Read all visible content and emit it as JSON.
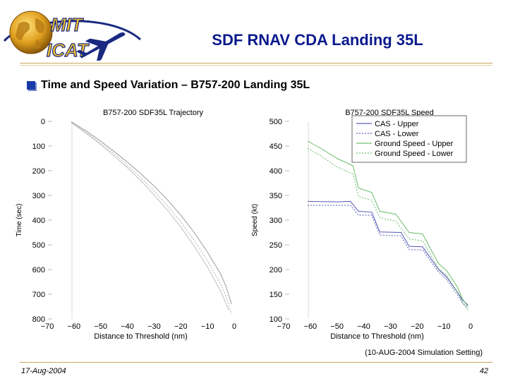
{
  "logo": {
    "line1": "MIT",
    "line2": "ICAT"
  },
  "header": {
    "title": "SDF RNAV CDA Landing 35L"
  },
  "bullet": {
    "text": "Time and Speed Variation – B757-200 Landing 35L"
  },
  "caption": "(10-AUG-2004 Simulation Setting)",
  "footer": {
    "date": "17-Aug-2004",
    "page": "42"
  },
  "colors": {
    "title": "#0a1a8c",
    "accent_gold": "#c8a858",
    "cas": "#3a3ab0",
    "ground": "#50b050",
    "traj": "#8a8a8a"
  },
  "chart_data": [
    {
      "type": "line",
      "title": "B757-200 SDF35L Trajectory",
      "xlabel": "Distance to Threshold (nm)",
      "ylabel": "Time (sec)",
      "xlim": [
        -70,
        0
      ],
      "ylim": [
        800,
        0
      ],
      "xticks": [
        -70,
        -60,
        -50,
        -40,
        -30,
        -20,
        -10,
        0
      ],
      "yticks": [
        0,
        100,
        200,
        300,
        400,
        500,
        600,
        700,
        800
      ],
      "y_inverted": true,
      "grid": false,
      "series": [
        {
          "x": [
            -61,
            -55,
            -50,
            -45,
            -40,
            -35,
            -30,
            -25,
            -20,
            -15,
            -10,
            -5,
            -3,
            -1
          ],
          "y": [
            2,
            42,
            80,
            122,
            165,
            212,
            262,
            318,
            380,
            450,
            530,
            620,
            670,
            740
          ]
        },
        {
          "x": [
            -61,
            -55,
            -50,
            -45,
            -40,
            -35,
            -30,
            -25,
            -20,
            -15,
            -10,
            -5,
            -3,
            -1
          ],
          "y": [
            4,
            48,
            88,
            132,
            178,
            228,
            282,
            342,
            408,
            482,
            565,
            660,
            710,
            780
          ]
        },
        {
          "x": [
            -61,
            -55,
            -50,
            -45,
            -40,
            -35,
            -30,
            -25,
            -20,
            -15,
            -10,
            -5,
            -2
          ],
          "y": [
            6,
            52,
            94,
            140,
            188,
            240,
            298,
            360,
            428,
            505,
            590,
            690,
            765
          ]
        }
      ]
    },
    {
      "type": "line",
      "title": "B757-200 SDF35L Speed",
      "xlabel": "Distance to Threshold (nm)",
      "ylabel": "Speed (kt)",
      "xlim": [
        -70,
        0
      ],
      "ylim": [
        100,
        500
      ],
      "xticks": [
        -70,
        -60,
        -50,
        -40,
        -30,
        -20,
        -10,
        0
      ],
      "yticks": [
        100,
        150,
        200,
        250,
        300,
        350,
        400,
        450,
        500
      ],
      "grid": false,
      "legend": "top-right",
      "series": [
        {
          "name": "CAS - Upper",
          "color": "#3a3ab0",
          "x": [
            -61,
            -50,
            -45,
            -42,
            -37,
            -34,
            -26,
            -23,
            -18,
            -12,
            -9,
            -5,
            -3,
            -1
          ],
          "y": [
            338,
            337,
            338,
            318,
            316,
            276,
            275,
            247,
            246,
            200,
            185,
            155,
            138,
            128
          ]
        },
        {
          "name": "CAS - Lower",
          "color": "#3a3ab0",
          "x": [
            -61,
            -50,
            -45,
            -42,
            -37,
            -34,
            -26,
            -23,
            -18,
            -12,
            -9,
            -5,
            -3,
            -1
          ],
          "y": [
            330,
            330,
            330,
            310,
            310,
            270,
            268,
            240,
            240,
            195,
            180,
            150,
            132,
            122
          ]
        },
        {
          "name": "Ground Speed - Upper",
          "color": "#50b050",
          "x": [
            -61,
            -56,
            -50,
            -44,
            -42,
            -37,
            -34,
            -28,
            -23,
            -18,
            -12,
            -9,
            -5,
            -3,
            -1
          ],
          "y": [
            460,
            445,
            425,
            410,
            365,
            356,
            318,
            312,
            275,
            272,
            212,
            198,
            165,
            140,
            125
          ]
        },
        {
          "name": "Ground Speed - Lower",
          "color": "#50b050",
          "x": [
            -61,
            -56,
            -50,
            -44,
            -42,
            -37,
            -34,
            -28,
            -23,
            -18,
            -12,
            -9,
            -5,
            -3,
            -1
          ],
          "y": [
            445,
            430,
            408,
            393,
            348,
            340,
            305,
            298,
            262,
            258,
            202,
            188,
            155,
            132,
            118
          ]
        }
      ]
    }
  ]
}
